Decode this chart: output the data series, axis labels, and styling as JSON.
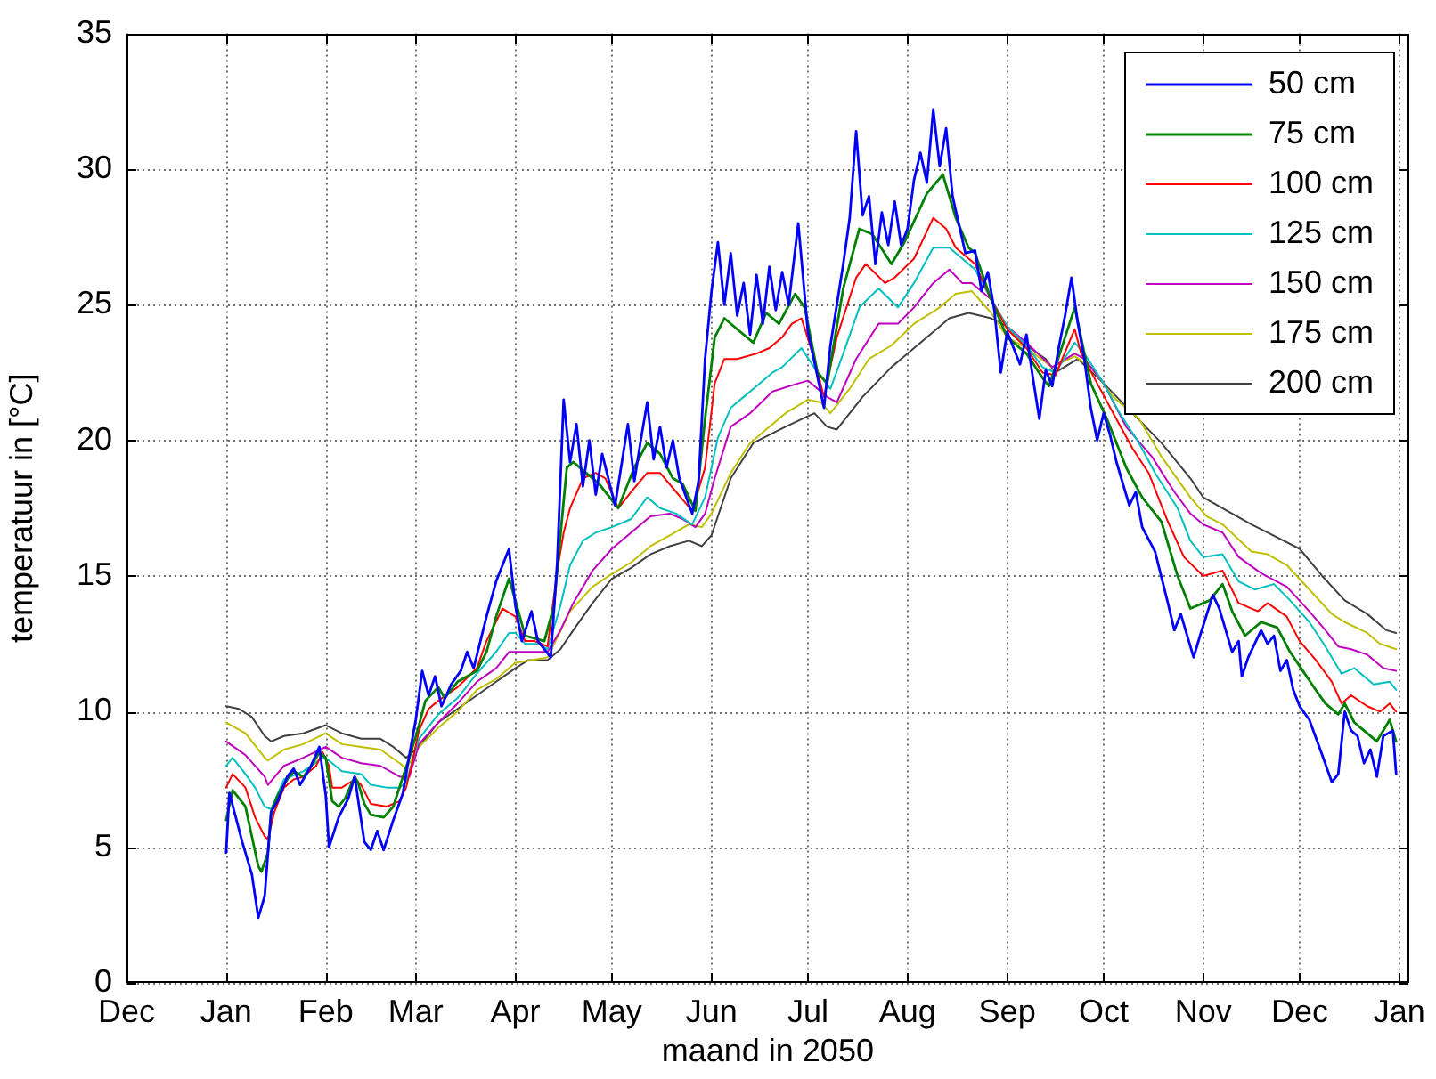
{
  "chart_data": {
    "type": "line",
    "xlabel": "maand in 2050",
    "ylabel": "temperatuur in [°C]",
    "xlim": [
      "2049-12-01",
      "2051-01-04"
    ],
    "xticks": [
      {
        "value": "2049-12-01",
        "label": "Dec"
      },
      {
        "value": "2050-01-01",
        "label": "Jan"
      },
      {
        "value": "2050-02-01",
        "label": "Feb"
      },
      {
        "value": "2050-03-01",
        "label": "Mar"
      },
      {
        "value": "2050-04-01",
        "label": "Apr"
      },
      {
        "value": "2050-05-01",
        "label": "May"
      },
      {
        "value": "2050-06-01",
        "label": "Jun"
      },
      {
        "value": "2050-07-01",
        "label": "Jul"
      },
      {
        "value": "2050-08-01",
        "label": "Aug"
      },
      {
        "value": "2050-09-01",
        "label": "Sep"
      },
      {
        "value": "2050-10-01",
        "label": "Oct"
      },
      {
        "value": "2050-11-01",
        "label": "Nov"
      },
      {
        "value": "2050-12-01",
        "label": "Dec"
      },
      {
        "value": "2051-01-01",
        "label": "Jan"
      }
    ],
    "ylim": [
      0,
      35
    ],
    "yticks": [
      0,
      5,
      10,
      15,
      20,
      25,
      30,
      35
    ],
    "grid": true,
    "legend": "top right",
    "series": [
      {
        "name": "50 cm",
        "color": "#0000ff",
        "x": [
          "2050-01-01",
          "2050-01-02",
          "2050-01-06",
          "2050-01-09",
          "2050-01-11",
          "2050-01-13",
          "2050-01-15",
          "2050-01-17",
          "2050-01-20",
          "2050-01-22",
          "2050-01-24",
          "2050-01-27",
          "2050-01-30",
          "2050-02-01",
          "2050-02-02",
          "2050-02-05",
          "2050-02-08",
          "2050-02-10",
          "2050-02-13",
          "2050-02-15",
          "2050-02-17",
          "2050-02-19",
          "2050-02-22",
          "2050-02-25",
          "2050-02-27",
          "2050-03-01",
          "2050-03-03",
          "2050-03-05",
          "2050-03-07",
          "2050-03-09",
          "2050-03-12",
          "2050-03-15",
          "2050-03-17",
          "2050-03-19",
          "2050-03-23",
          "2050-03-26",
          "2050-03-30",
          "2050-04-01",
          "2050-04-03",
          "2050-04-06",
          "2050-04-08",
          "2050-04-12",
          "2050-04-14",
          "2050-04-16",
          "2050-04-18",
          "2050-04-20",
          "2050-04-22",
          "2050-04-24",
          "2050-04-26",
          "2050-04-28",
          "2050-05-02",
          "2050-05-06",
          "2050-05-08",
          "2050-05-10",
          "2050-05-12",
          "2050-05-14",
          "2050-05-16",
          "2050-05-18",
          "2050-05-20",
          "2050-05-22",
          "2050-05-26",
          "2050-05-28",
          "2050-05-30",
          "2050-06-01",
          "2050-06-03",
          "2050-06-05",
          "2050-06-07",
          "2050-06-09",
          "2050-06-11",
          "2050-06-13",
          "2050-06-15",
          "2050-06-17",
          "2050-06-19",
          "2050-06-21",
          "2050-06-23",
          "2050-06-25",
          "2050-06-28",
          "2050-07-01",
          "2050-07-03",
          "2050-07-06",
          "2050-07-08",
          "2050-07-10",
          "2050-07-12",
          "2050-07-14",
          "2050-07-16",
          "2050-07-18",
          "2050-07-20",
          "2050-07-22",
          "2050-07-24",
          "2050-07-26",
          "2050-07-28",
          "2050-07-30",
          "2050-08-01",
          "2050-08-03",
          "2050-08-05",
          "2050-08-07",
          "2050-08-09",
          "2050-08-11",
          "2050-08-13",
          "2050-08-15",
          "2050-08-19",
          "2050-08-22",
          "2050-08-24",
          "2050-08-26",
          "2050-08-28",
          "2050-08-30",
          "2050-09-01",
          "2050-09-03",
          "2050-09-05",
          "2050-09-07",
          "2050-09-09",
          "2050-09-11",
          "2050-09-13",
          "2050-09-15",
          "2050-09-17",
          "2050-09-19",
          "2050-09-21",
          "2050-09-23",
          "2050-09-25",
          "2050-09-27",
          "2050-09-29",
          "2050-10-01",
          "2050-10-03",
          "2050-10-05",
          "2050-10-09",
          "2050-10-11",
          "2050-10-13",
          "2050-10-17",
          "2050-10-21",
          "2050-10-23",
          "2050-10-25",
          "2050-10-29",
          "2050-10-31",
          "2050-11-04",
          "2050-11-06",
          "2050-11-10",
          "2050-11-12",
          "2050-11-13",
          "2050-11-15",
          "2050-11-19",
          "2050-11-21",
          "2050-11-23",
          "2050-11-25",
          "2050-11-27",
          "2050-11-29",
          "2050-12-01",
          "2050-12-04",
          "2050-12-08",
          "2050-12-11",
          "2050-12-13",
          "2050-12-15",
          "2050-12-17",
          "2050-12-19",
          "2050-12-21",
          "2050-12-23",
          "2050-12-25",
          "2050-12-27",
          "2050-12-30",
          "2050-12-31"
        ],
        "values": [
          4.8,
          7.0,
          5.2,
          4.0,
          2.4,
          3.2,
          6.3,
          6.7,
          7.6,
          7.9,
          7.3,
          7.9,
          8.7,
          6.9,
          5.0,
          6.1,
          6.8,
          7.6,
          5.2,
          4.9,
          5.6,
          4.9,
          6.0,
          7.0,
          8.4,
          9.7,
          11.5,
          10.6,
          11.3,
          10.2,
          11.0,
          11.5,
          12.2,
          11.6,
          13.5,
          14.8,
          16.0,
          13.9,
          12.6,
          13.7,
          12.6,
          12.0,
          15.5,
          21.5,
          19.2,
          20.6,
          18.3,
          20.0,
          18.0,
          19.5,
          17.6,
          20.6,
          18.5,
          20.0,
          21.4,
          19.3,
          20.5,
          19.0,
          20.0,
          18.6,
          17.3,
          18.5,
          23.0,
          25.5,
          27.3,
          25.0,
          26.9,
          24.6,
          25.8,
          23.9,
          26.1,
          24.3,
          26.4,
          24.8,
          26.2,
          25.0,
          28.0,
          24.0,
          22.9,
          21.2,
          23.5,
          25.0,
          26.5,
          28.2,
          31.4,
          28.3,
          29.0,
          26.5,
          28.4,
          27.2,
          28.8,
          27.2,
          27.8,
          29.6,
          30.6,
          29.5,
          32.2,
          30.1,
          31.5,
          29.0,
          26.9,
          27.0,
          25.5,
          26.2,
          24.8,
          22.5,
          24.0,
          23.4,
          22.8,
          23.9,
          22.3,
          20.8,
          22.6,
          22.0,
          23.4,
          24.6,
          26.0,
          24.3,
          23.0,
          21.2,
          20.0,
          21.0,
          20.2,
          19.2,
          17.6,
          18.1,
          16.8,
          15.9,
          14.0,
          13.0,
          13.6,
          12.0,
          12.8,
          14.3,
          13.8,
          12.2,
          12.6,
          11.3,
          12.0,
          13.0,
          12.5,
          12.8,
          11.5,
          11.9,
          10.8,
          10.2,
          9.7,
          8.4,
          7.4,
          7.7,
          10.0,
          9.3,
          9.1,
          8.1,
          8.6,
          7.6,
          9.1,
          9.3,
          7.7
        ]
      },
      {
        "name": "75 cm",
        "color": "#008000",
        "x": [
          "2050-01-01",
          "2050-01-03",
          "2050-01-07",
          "2050-01-09",
          "2050-01-11",
          "2050-01-12",
          "2050-01-14",
          "2050-01-15",
          "2050-01-17",
          "2050-01-20",
          "2050-01-22",
          "2050-01-25",
          "2050-01-27",
          "2050-01-30",
          "2050-02-01",
          "2050-02-03",
          "2050-02-05",
          "2050-02-07",
          "2050-02-10",
          "2050-02-11",
          "2050-02-13",
          "2050-02-15",
          "2050-02-19",
          "2050-02-22",
          "2050-02-25",
          "2050-02-27",
          "2050-03-02",
          "2050-03-04",
          "2050-03-08",
          "2050-03-10",
          "2050-03-14",
          "2050-03-20",
          "2050-03-23",
          "2050-03-26",
          "2050-03-30",
          "2050-04-01",
          "2050-04-04",
          "2050-04-07",
          "2050-04-10",
          "2050-04-13",
          "2050-04-15",
          "2050-04-17",
          "2050-04-19",
          "2050-04-23",
          "2050-04-27",
          "2050-05-03",
          "2050-05-08",
          "2050-05-12",
          "2050-05-16",
          "2050-05-20",
          "2050-05-23",
          "2050-05-27",
          "2050-05-30",
          "2050-06-02",
          "2050-06-05",
          "2050-06-09",
          "2050-06-14",
          "2050-06-18",
          "2050-06-22",
          "2050-06-27",
          "2050-06-30",
          "2050-07-04",
          "2050-07-07",
          "2050-07-12",
          "2050-07-17",
          "2050-07-21",
          "2050-07-27",
          "2050-07-31",
          "2050-08-07",
          "2050-08-12",
          "2050-08-16",
          "2050-08-20",
          "2050-08-22",
          "2050-08-27",
          "2050-09-01",
          "2050-09-07",
          "2050-09-12",
          "2050-09-14",
          "2050-09-16",
          "2050-09-22",
          "2050-09-27",
          "2050-10-02",
          "2050-10-08",
          "2050-10-13",
          "2050-10-19",
          "2050-10-24",
          "2050-10-28",
          "2050-11-03",
          "2050-11-07",
          "2050-11-10",
          "2050-11-14",
          "2050-11-19",
          "2050-11-24",
          "2050-11-28",
          "2050-12-02",
          "2050-12-06",
          "2050-12-09",
          "2050-12-13",
          "2050-12-15",
          "2050-12-18",
          "2050-12-22",
          "2050-12-25",
          "2050-12-29",
          "2050-12-31"
        ],
        "values": [
          6.0,
          7.1,
          6.5,
          5.4,
          4.3,
          4.1,
          4.8,
          6.3,
          6.9,
          7.5,
          7.8,
          7.6,
          7.9,
          8.5,
          8.3,
          6.7,
          6.5,
          6.8,
          7.6,
          7.4,
          6.6,
          6.2,
          6.1,
          6.5,
          7.6,
          8.3,
          9.5,
          10.4,
          10.9,
          10.5,
          11.1,
          11.5,
          12.2,
          13.5,
          14.9,
          14.1,
          12.8,
          12.7,
          12.6,
          13.9,
          16.5,
          19.0,
          19.2,
          18.8,
          18.4,
          17.5,
          19.0,
          19.9,
          19.5,
          18.6,
          18.4,
          17.4,
          20.8,
          23.8,
          24.5,
          24.1,
          23.6,
          24.7,
          24.3,
          25.4,
          24.9,
          22.5,
          22.1,
          25.6,
          27.8,
          27.6,
          26.5,
          27.3,
          29.1,
          29.8,
          28.2,
          27.1,
          26.9,
          25.2,
          23.8,
          23.2,
          22.3,
          22.0,
          22.7,
          24.9,
          22.1,
          20.8,
          19.0,
          17.9,
          17.0,
          15.0,
          13.8,
          14.1,
          14.7,
          13.7,
          12.8,
          13.3,
          13.1,
          12.2,
          11.5,
          10.8,
          10.3,
          9.9,
          10.3,
          9.6,
          9.2,
          8.9,
          9.7,
          8.9
        ]
      },
      {
        "name": "100 cm",
        "color": "#ff0000",
        "x": [
          "2050-01-01",
          "2050-01-03",
          "2050-01-07",
          "2050-01-10",
          "2050-01-13",
          "2050-01-14",
          "2050-01-16",
          "2050-01-19",
          "2050-01-22",
          "2050-01-25",
          "2050-01-29",
          "2050-01-31",
          "2050-02-02",
          "2050-02-03",
          "2050-02-06",
          "2050-02-10",
          "2050-02-12",
          "2050-02-15",
          "2050-02-20",
          "2050-02-24",
          "2050-02-26",
          "2050-02-28",
          "2050-03-02",
          "2050-03-05",
          "2050-03-08",
          "2050-03-14",
          "2050-03-20",
          "2050-03-23",
          "2050-03-28",
          "2050-04-01",
          "2050-04-04",
          "2050-04-07",
          "2050-04-11",
          "2050-04-14",
          "2050-04-16",
          "2050-04-18",
          "2050-04-22",
          "2050-04-26",
          "2050-04-29",
          "2050-05-03",
          "2050-05-07",
          "2050-05-12",
          "2050-05-16",
          "2050-05-21",
          "2050-05-26",
          "2050-05-30",
          "2050-06-02",
          "2050-06-05",
          "2050-06-09",
          "2050-06-15",
          "2050-06-19",
          "2050-06-23",
          "2050-06-26",
          "2050-06-29",
          "2050-07-03",
          "2050-07-06",
          "2050-07-10",
          "2050-07-16",
          "2050-07-19",
          "2050-07-25",
          "2050-07-28",
          "2050-08-03",
          "2050-08-09",
          "2050-08-13",
          "2050-08-16",
          "2050-08-20",
          "2050-08-22",
          "2050-08-27",
          "2050-09-01",
          "2050-09-07",
          "2050-09-12",
          "2050-09-16",
          "2050-09-22",
          "2050-09-24",
          "2050-09-29",
          "2050-10-04",
          "2050-10-10",
          "2050-10-15",
          "2050-10-21",
          "2050-10-26",
          "2050-11-01",
          "2050-11-07",
          "2050-11-12",
          "2050-11-18",
          "2050-11-21",
          "2050-11-27",
          "2050-12-01",
          "2050-12-06",
          "2050-12-11",
          "2050-12-14",
          "2050-12-17",
          "2050-12-22",
          "2050-12-26",
          "2050-12-29",
          "2050-12-31"
        ],
        "values": [
          7.2,
          7.7,
          7.2,
          6.1,
          5.4,
          5.3,
          6.3,
          7.2,
          7.5,
          7.6,
          8.0,
          8.5,
          8.0,
          7.2,
          7.2,
          7.5,
          7.3,
          6.6,
          6.5,
          6.7,
          7.2,
          8.2,
          9.3,
          10.1,
          10.4,
          10.9,
          11.6,
          12.6,
          13.8,
          13.5,
          12.6,
          12.6,
          12.4,
          15.2,
          16.6,
          17.5,
          18.6,
          18.8,
          18.6,
          17.5,
          18.1,
          18.8,
          18.8,
          18.1,
          17.4,
          19.0,
          22.1,
          23.0,
          23.0,
          23.2,
          23.4,
          23.8,
          24.3,
          24.5,
          23.0,
          21.6,
          23.8,
          26.0,
          26.5,
          25.8,
          26.0,
          26.7,
          28.2,
          27.8,
          27.1,
          26.7,
          26.5,
          25.2,
          24.1,
          23.4,
          22.5,
          22.4,
          24.1,
          23.2,
          22.1,
          21.0,
          19.7,
          18.8,
          17.0,
          15.7,
          15.0,
          15.2,
          14.0,
          13.7,
          14.0,
          13.5,
          12.6,
          11.9,
          11.1,
          10.3,
          10.6,
          10.2,
          10.0,
          10.3,
          10.0
        ]
      },
      {
        "name": "125 cm",
        "color": "#00bfbf",
        "x": [
          "2050-01-01",
          "2050-01-03",
          "2050-01-07",
          "2050-01-10",
          "2050-01-13",
          "2050-01-15",
          "2050-01-19",
          "2050-01-25",
          "2050-01-31",
          "2050-02-02",
          "2050-02-06",
          "2050-02-12",
          "2050-02-15",
          "2050-02-20",
          "2050-02-24",
          "2050-02-26",
          "2050-03-02",
          "2050-03-08",
          "2050-03-14",
          "2050-03-20",
          "2050-03-26",
          "2050-03-30",
          "2050-04-01",
          "2050-04-04",
          "2050-04-08",
          "2050-04-11",
          "2050-04-15",
          "2050-04-18",
          "2050-04-22",
          "2050-04-26",
          "2050-05-01",
          "2050-05-07",
          "2050-05-12",
          "2050-05-16",
          "2050-05-21",
          "2050-05-26",
          "2050-05-30",
          "2050-06-03",
          "2050-06-07",
          "2050-06-11",
          "2050-06-16",
          "2050-06-20",
          "2050-06-23",
          "2050-06-29",
          "2050-07-04",
          "2050-07-08",
          "2050-07-12",
          "2050-07-17",
          "2050-07-23",
          "2050-07-29",
          "2050-08-03",
          "2050-08-09",
          "2050-08-14",
          "2050-08-20",
          "2050-08-22",
          "2050-08-27",
          "2050-09-01",
          "2050-09-07",
          "2050-09-12",
          "2050-09-16",
          "2050-09-22",
          "2050-09-25",
          "2050-10-01",
          "2050-10-06",
          "2050-10-12",
          "2050-10-17",
          "2050-10-24",
          "2050-10-28",
          "2050-11-01",
          "2050-11-07",
          "2050-11-12",
          "2050-11-17",
          "2050-11-23",
          "2050-11-28",
          "2050-12-04",
          "2050-12-09",
          "2050-12-14",
          "2050-12-18",
          "2050-12-24",
          "2050-12-29",
          "2050-12-31"
        ],
        "values": [
          8.0,
          8.3,
          7.7,
          7.2,
          6.5,
          6.4,
          7.5,
          7.8,
          8.3,
          8.2,
          7.8,
          7.7,
          7.3,
          7.2,
          7.2,
          7.4,
          9.0,
          9.9,
          10.5,
          11.4,
          12.2,
          12.9,
          12.9,
          12.5,
          12.5,
          12.3,
          13.9,
          15.4,
          16.3,
          16.6,
          16.8,
          17.1,
          17.9,
          17.5,
          17.3,
          16.9,
          17.9,
          20.1,
          21.2,
          21.6,
          22.1,
          22.5,
          22.7,
          23.4,
          22.5,
          21.9,
          23.2,
          24.9,
          25.6,
          24.9,
          25.8,
          27.1,
          27.1,
          26.5,
          26.3,
          25.2,
          24.2,
          23.5,
          22.7,
          22.5,
          23.6,
          23.2,
          22.1,
          21.0,
          19.9,
          18.8,
          17.5,
          16.3,
          15.7,
          15.8,
          14.8,
          14.5,
          14.7,
          14.1,
          13.3,
          12.4,
          11.4,
          11.6,
          11.0,
          11.1,
          10.8
        ]
      },
      {
        "name": "150 cm",
        "color": "#bf00bf",
        "x": [
          "2050-01-01",
          "2050-01-07",
          "2050-01-13",
          "2050-01-14",
          "2050-01-19",
          "2050-01-25",
          "2050-02-01",
          "2050-02-06",
          "2050-02-12",
          "2050-02-18",
          "2050-02-24",
          "2050-02-27",
          "2050-03-02",
          "2050-03-08",
          "2050-03-14",
          "2050-03-20",
          "2050-03-26",
          "2050-03-30",
          "2050-04-03",
          "2050-04-11",
          "2050-04-15",
          "2050-04-19",
          "2050-04-25",
          "2050-05-01",
          "2050-05-07",
          "2050-05-13",
          "2050-05-19",
          "2050-05-23",
          "2050-05-27",
          "2050-05-30",
          "2050-06-02",
          "2050-06-07",
          "2050-06-13",
          "2050-06-20",
          "2050-06-28",
          "2050-07-01",
          "2050-07-07",
          "2050-07-10",
          "2050-07-16",
          "2050-07-23",
          "2050-07-29",
          "2050-08-03",
          "2050-08-09",
          "2050-08-14",
          "2050-08-18",
          "2050-08-21",
          "2050-08-27",
          "2050-09-01",
          "2050-09-07",
          "2050-09-15",
          "2050-09-22",
          "2050-09-25",
          "2050-10-01",
          "2050-10-08",
          "2050-10-16",
          "2050-10-23",
          "2050-10-28",
          "2050-11-01",
          "2050-11-07",
          "2050-11-12",
          "2050-11-19",
          "2050-11-27",
          "2050-12-04",
          "2050-12-09",
          "2050-12-13",
          "2050-12-17",
          "2050-12-22",
          "2050-12-27",
          "2050-12-31"
        ],
        "values": [
          8.9,
          8.4,
          7.6,
          7.3,
          8.0,
          8.3,
          8.7,
          8.3,
          8.1,
          8.0,
          7.6,
          7.6,
          8.8,
          9.6,
          10.3,
          11.1,
          11.6,
          12.2,
          12.2,
          12.2,
          13.0,
          14.0,
          15.2,
          16.0,
          16.6,
          17.2,
          17.3,
          17.1,
          16.8,
          17.3,
          18.6,
          20.5,
          21.0,
          21.8,
          22.1,
          22.2,
          21.6,
          21.4,
          23.0,
          24.3,
          24.3,
          24.9,
          25.8,
          26.3,
          25.8,
          25.8,
          25.2,
          24.2,
          23.6,
          22.7,
          23.2,
          23.0,
          22.1,
          20.5,
          19.4,
          18.1,
          17.3,
          16.9,
          16.6,
          15.7,
          15.1,
          14.6,
          13.7,
          13.0,
          12.4,
          12.3,
          12.1,
          11.6,
          11.5
        ]
      },
      {
        "name": "175 cm",
        "color": "#bfbf00",
        "x": [
          "2050-01-01",
          "2050-01-07",
          "2050-01-13",
          "2050-01-14",
          "2050-01-19",
          "2050-01-25",
          "2050-02-01",
          "2050-02-06",
          "2050-02-12",
          "2050-02-18",
          "2050-02-24",
          "2050-02-26",
          "2050-03-02",
          "2050-03-08",
          "2050-03-14",
          "2050-03-20",
          "2050-03-26",
          "2050-04-01",
          "2050-04-06",
          "2050-04-11",
          "2050-04-18",
          "2050-04-25",
          "2050-04-30",
          "2050-05-07",
          "2050-05-13",
          "2050-05-19",
          "2050-05-25",
          "2050-05-29",
          "2050-06-01",
          "2050-06-07",
          "2050-06-13",
          "2050-06-18",
          "2050-06-24",
          "2050-07-01",
          "2050-07-05",
          "2050-07-08",
          "2050-07-14",
          "2050-07-20",
          "2050-07-27",
          "2050-08-03",
          "2050-08-11",
          "2050-08-16",
          "2050-08-21",
          "2050-08-27",
          "2050-09-01",
          "2050-09-07",
          "2050-09-15",
          "2050-09-22",
          "2050-09-27",
          "2050-10-04",
          "2050-10-12",
          "2050-10-19",
          "2050-10-28",
          "2050-11-02",
          "2050-11-07",
          "2050-11-16",
          "2050-11-21",
          "2050-11-27",
          "2050-12-04",
          "2050-12-11",
          "2050-12-15",
          "2050-12-22",
          "2050-12-26",
          "2050-12-31"
        ],
        "values": [
          9.6,
          9.2,
          8.3,
          8.2,
          8.6,
          8.8,
          9.2,
          8.8,
          8.7,
          8.6,
          8.1,
          7.9,
          8.7,
          9.4,
          10.0,
          10.8,
          11.2,
          11.8,
          11.9,
          12.0,
          13.7,
          14.6,
          15.0,
          15.5,
          16.1,
          16.5,
          16.9,
          16.8,
          17.3,
          18.8,
          19.9,
          20.4,
          21.0,
          21.5,
          21.4,
          21.0,
          21.9,
          23.0,
          23.5,
          24.3,
          24.9,
          25.4,
          25.5,
          24.7,
          23.8,
          23.4,
          22.7,
          23.1,
          22.7,
          21.6,
          20.8,
          19.4,
          17.9,
          17.2,
          16.9,
          15.9,
          15.8,
          15.4,
          14.5,
          13.6,
          13.3,
          12.9,
          12.5,
          12.3
        ]
      },
      {
        "name": "200 cm",
        "color": "#404040",
        "x": [
          "2050-01-01",
          "2050-01-05",
          "2050-01-09",
          "2050-01-13",
          "2050-01-15",
          "2050-01-19",
          "2050-01-25",
          "2050-02-01",
          "2050-02-06",
          "2050-02-12",
          "2050-02-18",
          "2050-02-22",
          "2050-02-26",
          "2050-03-02",
          "2050-03-08",
          "2050-03-14",
          "2050-03-20",
          "2050-03-26",
          "2050-04-01",
          "2050-04-05",
          "2050-04-11",
          "2050-04-15",
          "2050-04-19",
          "2050-04-25",
          "2050-05-01",
          "2050-05-07",
          "2050-05-13",
          "2050-05-19",
          "2050-05-25",
          "2050-05-29",
          "2050-06-01",
          "2050-06-07",
          "2050-06-14",
          "2050-06-24",
          "2050-07-03",
          "2050-07-07",
          "2050-07-10",
          "2050-07-18",
          "2050-07-27",
          "2050-08-05",
          "2050-08-14",
          "2050-08-20",
          "2050-08-27",
          "2050-09-01",
          "2050-09-07",
          "2050-09-13",
          "2050-09-16",
          "2050-09-23",
          "2050-10-01",
          "2050-10-10",
          "2050-10-19",
          "2050-10-28",
          "2050-11-01",
          "2050-11-07",
          "2050-11-16",
          "2050-11-21",
          "2050-12-01",
          "2050-12-08",
          "2050-12-15",
          "2050-12-22",
          "2050-12-28",
          "2050-12-31"
        ],
        "values": [
          10.2,
          10.1,
          9.8,
          9.1,
          8.9,
          9.1,
          9.2,
          9.5,
          9.2,
          9.0,
          9.0,
          8.7,
          8.3,
          8.7,
          9.6,
          10.1,
          10.6,
          11.1,
          11.6,
          11.9,
          11.9,
          12.3,
          13.0,
          14.0,
          14.9,
          15.3,
          15.8,
          16.1,
          16.3,
          16.1,
          16.5,
          18.6,
          19.9,
          20.5,
          21.0,
          20.5,
          20.4,
          21.6,
          22.7,
          23.6,
          24.5,
          24.7,
          24.5,
          24.2,
          23.5,
          23.0,
          22.5,
          23.0,
          22.1,
          21.0,
          19.9,
          18.6,
          17.9,
          17.5,
          16.9,
          16.6,
          16.0,
          15.0,
          14.1,
          13.6,
          13.0,
          12.9
        ]
      }
    ]
  }
}
